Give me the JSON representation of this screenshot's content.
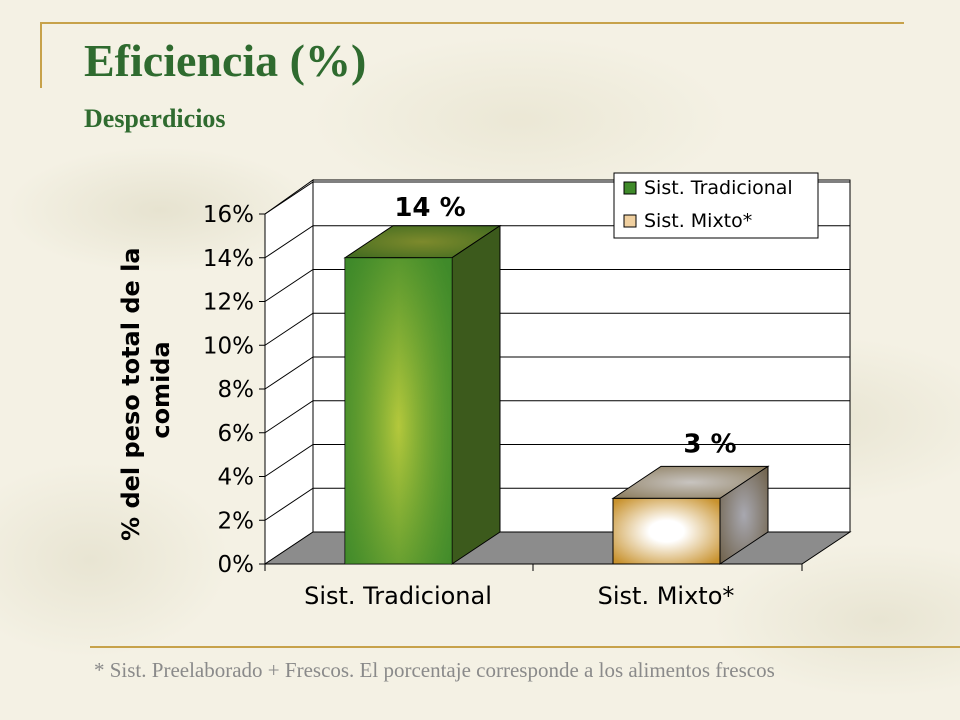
{
  "slide": {
    "title": "Eficiencia (%)",
    "subtitle": "Desperdicios",
    "footnote": "* Sist. Preelaborado + Frescos. El porcentaje corresponde a los alimentos frescos"
  },
  "chart_data": {
    "type": "bar",
    "title": "",
    "xlabel": "",
    "ylabel": "% del peso total de la comida",
    "categories": [
      "Sist. Tradicional",
      "Sist. Mixto*"
    ],
    "values": [
      14,
      3
    ],
    "data_labels": [
      "14 %",
      "3 %"
    ],
    "legend": [
      "Sist. Tradicional",
      "Sist. Mixto*"
    ],
    "legend_position": "top-right",
    "ylim": [
      0,
      16
    ],
    "yticks": [
      "0%",
      "2%",
      "4%",
      "6%",
      "8%",
      "10%",
      "12%",
      "14%",
      "16%"
    ],
    "grid": true,
    "three_d": true,
    "colors": {
      "tradicional_front_light": "#b4c83c",
      "tradicional_front_dark": "#3f8a2a",
      "tradicional_side": "#3c5a1c",
      "tradicional_top": "#4e7424",
      "mixto_front_light": "#ffffff",
      "mixto_front_dark": "#c8922e",
      "mixto_side": "#8a8070",
      "mixto_top": "#a89880",
      "floor": "#8c8c8c"
    }
  }
}
